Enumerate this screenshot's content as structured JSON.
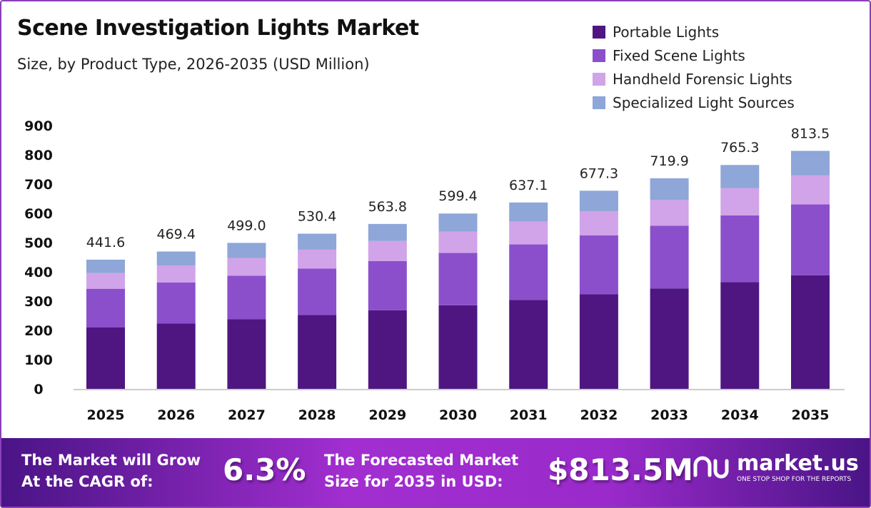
{
  "chart_data": {
    "type": "bar",
    "stacked": true,
    "title": "Scene Investigation Lights Market",
    "subtitle": "Size, by Product Type, 2026-2035 (USD Million)",
    "categories": [
      "2025",
      "2026",
      "2027",
      "2028",
      "2029",
      "2030",
      "2031",
      "2032",
      "2033",
      "2034",
      "2035"
    ],
    "totals": [
      "441.6",
      "469.4",
      "499.0",
      "530.4",
      "563.8",
      "599.4",
      "637.1",
      "677.3",
      "719.9",
      "765.3",
      "813.5"
    ],
    "series": [
      {
        "name": "Portable Lights",
        "color": "#4f1682",
        "values": [
          210.6,
          223.9,
          238.0,
          253.0,
          268.9,
          285.9,
          303.9,
          323.1,
          343.4,
          365.0,
          388.0
        ]
      },
      {
        "name": "Fixed Scene Lights",
        "color": "#8b4fcc",
        "values": [
          131.6,
          139.9,
          148.7,
          158.1,
          168.0,
          178.6,
          189.9,
          201.8,
          214.5,
          228.1,
          242.4
        ]
      },
      {
        "name": "Handheld Forensic Lights",
        "color": "#d1a3e8",
        "values": [
          53.9,
          57.3,
          60.9,
          64.7,
          68.8,
          73.1,
          77.7,
          82.6,
          87.8,
          93.4,
          99.2
        ]
      },
      {
        "name": "Specialized Light Sources",
        "color": "#8ea6d8",
        "values": [
          45.5,
          48.3,
          51.4,
          54.6,
          58.1,
          61.8,
          65.6,
          69.8,
          74.2,
          78.8,
          83.9
        ]
      }
    ],
    "yticks": [
      "0",
      "100",
      "200",
      "300",
      "400",
      "500",
      "600",
      "700",
      "800",
      "900"
    ],
    "ylim": [
      0,
      900
    ],
    "grid": false,
    "legend_position": "top-right"
  },
  "banner": {
    "cagr_label_1": "The Market will Grow",
    "cagr_label_2": "At the CAGR of:",
    "cagr_value": "6.3%",
    "forecast_label_1": "The Forecasted Market",
    "forecast_label_2": "Size for 2035 in USD:",
    "forecast_value": "$813.5M",
    "logo_name": "market.us",
    "logo_tagline": "ONE STOP SHOP FOR THE REPORTS"
  }
}
